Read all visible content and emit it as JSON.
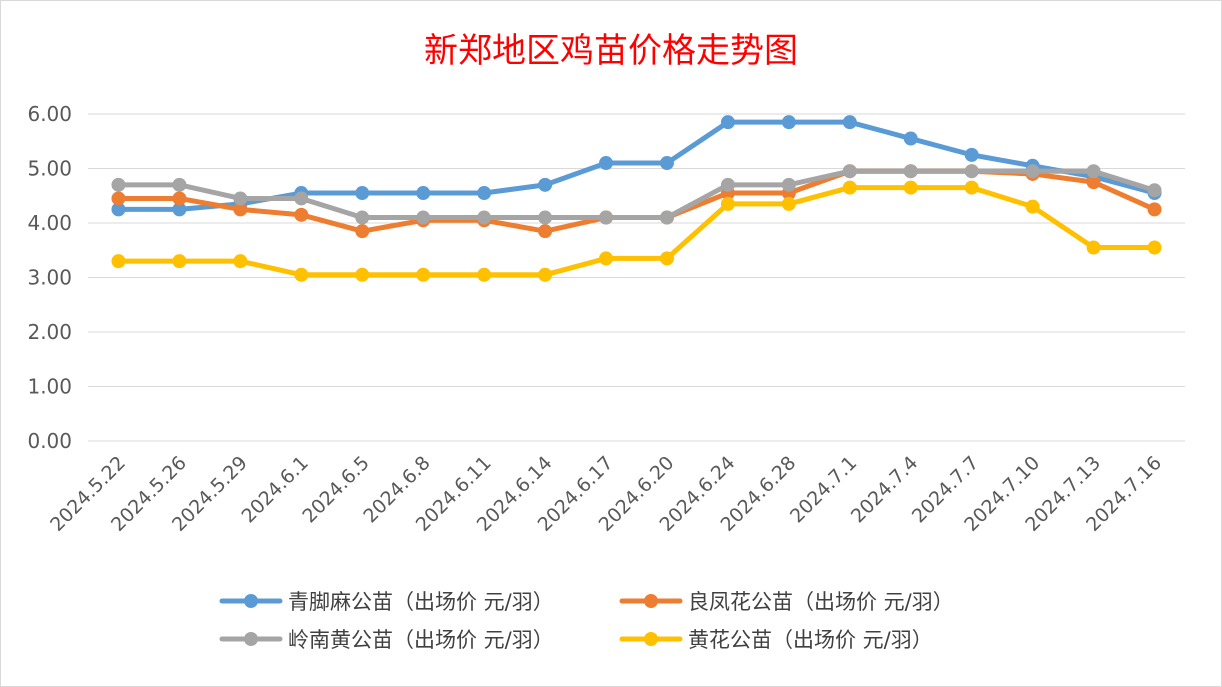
{
  "chart_data": {
    "type": "line",
    "title": "新郑地区鸡苗价格走势图",
    "xlabel": "",
    "ylabel": "",
    "x": [
      "2024.5.22",
      "2024.5.26",
      "2024.5.29",
      "2024.6.1",
      "2024.6.5",
      "2024.6.8",
      "2024.6.11",
      "2024.6.14",
      "2024.6.17",
      "2024.6.20",
      "2024.6.24",
      "2024.6.28",
      "2024.7.1",
      "2024.7.4",
      "2024.7.7",
      "2024.7.10",
      "2024.7.13",
      "2024.7.16"
    ],
    "ylim": [
      0,
      6
    ],
    "yticks": [
      "0.00",
      "1.00",
      "2.00",
      "3.00",
      "4.00",
      "5.00",
      "6.00"
    ],
    "grid": true,
    "legend_position": "bottom",
    "series": [
      {
        "name": "青脚麻公苗（出场价 元/羽）",
        "color": "#5b9bd5",
        "values": [
          4.25,
          4.25,
          4.35,
          4.55,
          4.55,
          4.55,
          4.55,
          4.7,
          5.1,
          5.1,
          5.85,
          5.85,
          5.85,
          5.55,
          5.25,
          5.05,
          4.85,
          4.55
        ]
      },
      {
        "name": "良凤花公苗（出场价 元/羽）",
        "color": "#ed7d31",
        "values": [
          4.45,
          4.45,
          4.25,
          4.15,
          3.85,
          4.05,
          4.05,
          3.85,
          4.1,
          4.1,
          4.55,
          4.55,
          4.95,
          4.95,
          4.95,
          4.9,
          4.75,
          4.25
        ]
      },
      {
        "name": "岭南黄公苗（出场价 元/羽）",
        "color": "#a5a5a5",
        "values": [
          4.7,
          4.7,
          4.45,
          4.45,
          4.1,
          4.1,
          4.1,
          4.1,
          4.1,
          4.1,
          4.7,
          4.7,
          4.95,
          4.95,
          4.95,
          4.95,
          4.95,
          4.6
        ]
      },
      {
        "name": "黄花公苗（出场价 元/羽）",
        "color": "#ffc000",
        "values": [
          3.3,
          3.3,
          3.3,
          3.05,
          3.05,
          3.05,
          3.05,
          3.05,
          3.35,
          3.35,
          4.35,
          4.35,
          4.65,
          4.65,
          4.65,
          4.3,
          3.55,
          3.55
        ]
      }
    ]
  }
}
